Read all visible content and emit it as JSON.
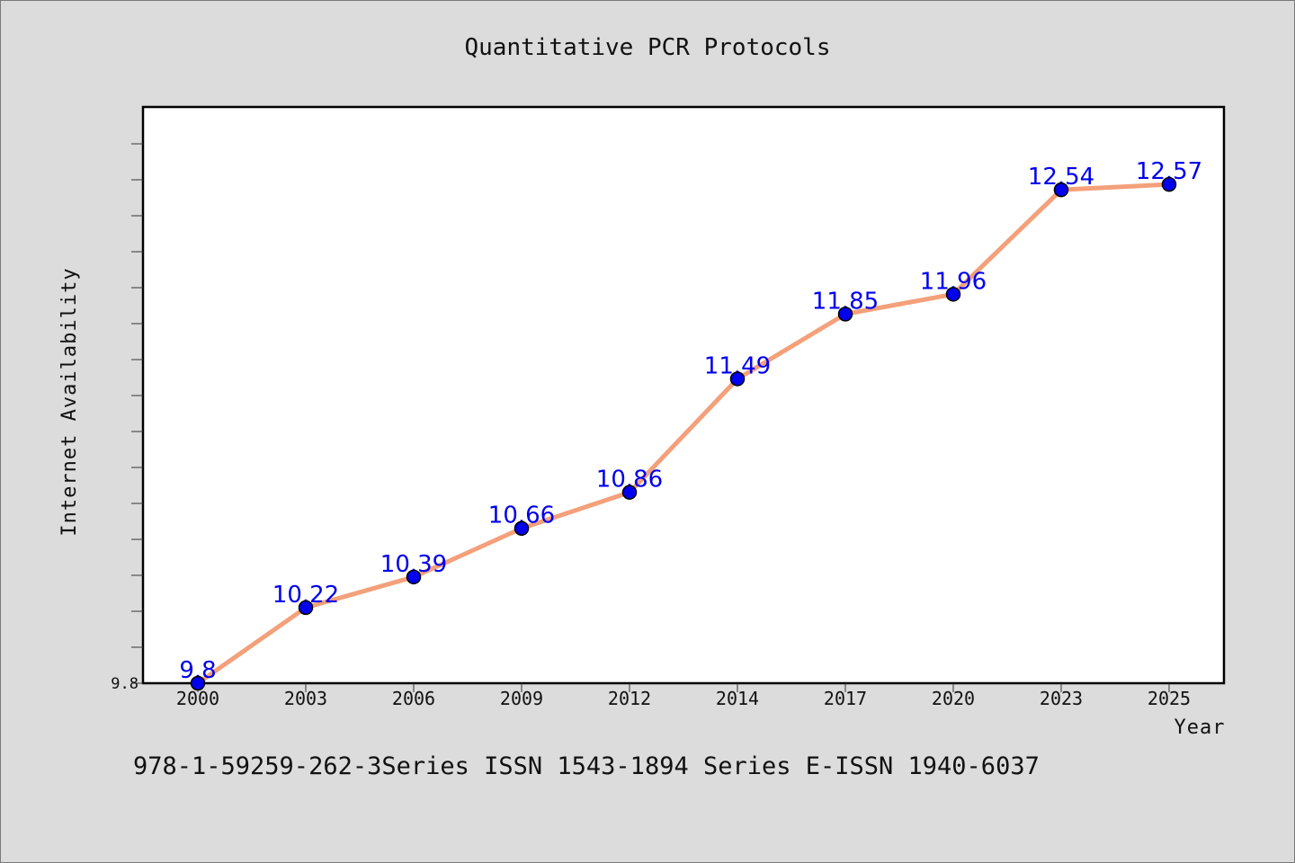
{
  "chart_data": {
    "type": "line",
    "title": "Quantitative PCR Protocols",
    "xlabel": "Year",
    "ylabel": "Internet Availability",
    "categories": [
      "2000",
      "2003",
      "2006",
      "2009",
      "2012",
      "2014",
      "2017",
      "2020",
      "2023",
      "2025"
    ],
    "series": [
      {
        "values": [
          9.8,
          10.22,
          10.39,
          10.66,
          10.86,
          11.49,
          11.85,
          11.96,
          12.54,
          12.57
        ],
        "labels": [
          "9.8",
          "10.22",
          "10.39",
          "10.66",
          "10.86",
          "11.49",
          "11.85",
          "11.96",
          "12.54",
          "12.57"
        ]
      }
    ],
    "ylim": [
      9.8,
      13.0
    ],
    "y_tick_labels": [
      "9.8"
    ],
    "grid": false,
    "line_color": "#f4a07a",
    "marker_color": "#0000ee",
    "label_color": "#0000ee"
  },
  "footer_text": "978-1-59259-262-3Series ISSN 1543-1894 Series E-ISSN 1940-6037"
}
